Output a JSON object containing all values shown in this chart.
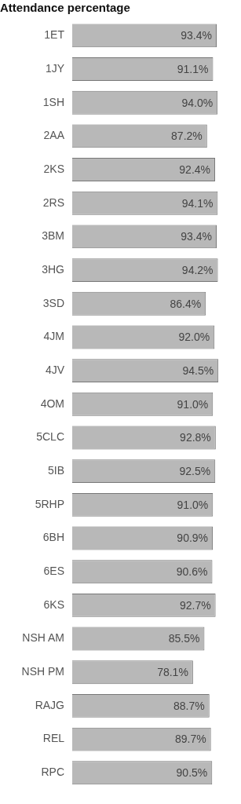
{
  "chart_data": {
    "type": "bar",
    "orientation": "horizontal",
    "title": "Attendance percentage",
    "categories": [
      "1ET",
      "1JY",
      "1SH",
      "2AA",
      "2KS",
      "2RS",
      "3BM",
      "3HG",
      "3SD",
      "4JM",
      "4JV",
      "4OM",
      "5CLC",
      "5IB",
      "5RHP",
      "6BH",
      "6ES",
      "6KS",
      "NSH AM",
      "NSH PM",
      "RAJG",
      "REL",
      "RPC"
    ],
    "values": [
      93.4,
      91.1,
      94.0,
      87.2,
      92.4,
      94.1,
      93.4,
      94.2,
      86.4,
      92.0,
      94.5,
      91.0,
      92.8,
      92.5,
      91.0,
      90.9,
      90.6,
      92.7,
      85.5,
      78.1,
      88.7,
      89.7,
      90.5
    ],
    "value_labels": [
      "93.4%",
      "91.1%",
      "94.0%",
      "87.2%",
      "92.4%",
      "94.1%",
      "93.4%",
      "94.2%",
      "86.4%",
      "92.0%",
      "94.5%",
      "91.0%",
      "92.8%",
      "92.5%",
      "91.0%",
      "90.9%",
      "90.6%",
      "92.7%",
      "85.5%",
      "78.1%",
      "88.7%",
      "89.7%",
      "90.5%"
    ],
    "color": "#b8b8b8",
    "tick_labels": "y"
  }
}
